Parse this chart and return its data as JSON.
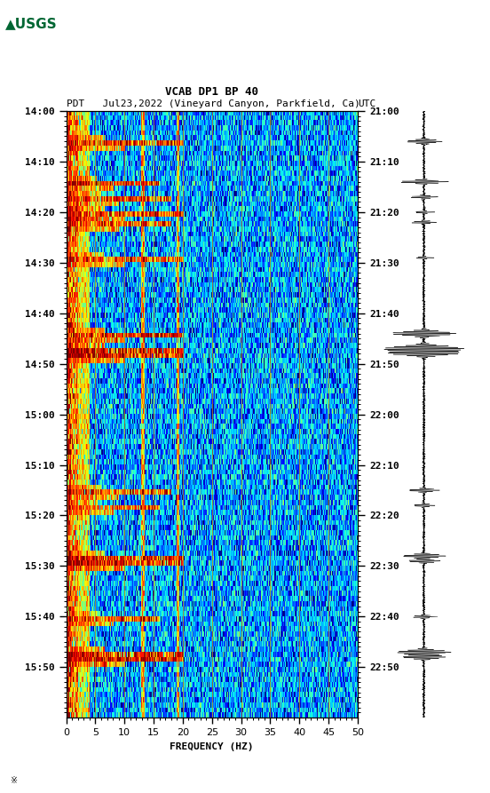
{
  "title_line1": "VCAB DP1 BP 40",
  "title_line2_pdt": "PDT   Jul23,2022 (Vineyard Canyon, Parkfield, Ca)        UTC",
  "xlabel": "FREQUENCY (HZ)",
  "freq_min": 0,
  "freq_max": 50,
  "left_yticks": [
    "14:00",
    "14:10",
    "14:20",
    "14:30",
    "14:40",
    "14:50",
    "15:00",
    "15:10",
    "15:20",
    "15:30",
    "15:40",
    "15:50"
  ],
  "right_yticks": [
    "21:00",
    "21:10",
    "21:20",
    "21:30",
    "21:40",
    "21:50",
    "22:00",
    "22:10",
    "22:20",
    "22:30",
    "22:40",
    "22:50"
  ],
  "background_color": "#ffffff",
  "usgs_green": "#006633",
  "colormap": "jet",
  "vline_color": "#b8860b",
  "vline_positions": [
    5,
    10,
    15,
    20,
    25,
    30,
    35,
    40,
    45
  ],
  "seismic_color": "#000000",
  "n_time": 120,
  "n_freq": 500,
  "base_noise_scale": 0.05,
  "low_freq_bins": 40,
  "event_rows": [
    6,
    14,
    17,
    20,
    22,
    29,
    44,
    47,
    48,
    75,
    78,
    88,
    89,
    100,
    107,
    108
  ],
  "event_freq_extents": [
    200,
    160,
    180,
    200,
    180,
    200,
    200,
    200,
    200,
    180,
    160,
    200,
    200,
    160,
    200,
    200
  ],
  "event_intensities": [
    6.0,
    7.0,
    5.0,
    6.0,
    5.0,
    4.0,
    8.0,
    9.0,
    7.0,
    5.0,
    4.0,
    7.0,
    6.0,
    5.0,
    8.0,
    7.0
  ],
  "vert_artifact_freqs": [
    130,
    190
  ],
  "vert_artifact_scale": 2.0,
  "spec_vmin": -2.5,
  "spec_vmax": 1.2
}
